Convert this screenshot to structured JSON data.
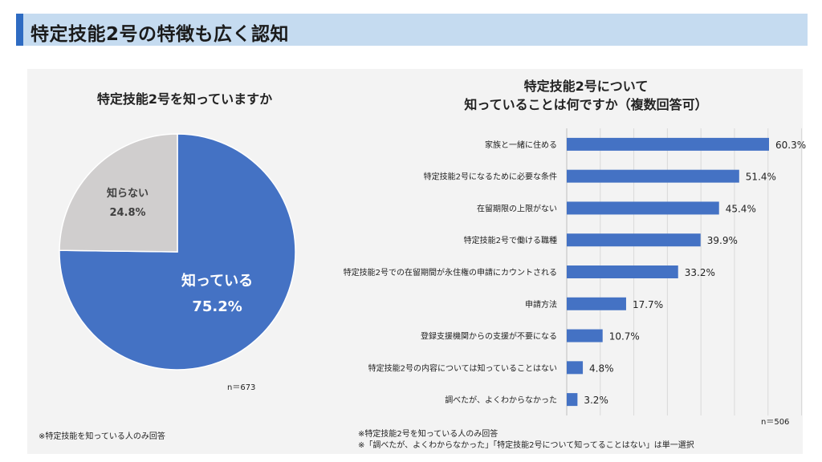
{
  "header": {
    "title": "特定技能2号の特徴も広く認知"
  },
  "pie_chart": {
    "title": "特定技能2号を知っていますか",
    "n_label": "n＝673",
    "note": "※特定技能を知っている人のみ回答"
  },
  "bar_chart": {
    "title_line1": "特定技能2号について",
    "title_line2": "知っていることは何ですか（複数回答可）",
    "n_label": "n＝506",
    "note_line1": "※特定技能2号を知っている人のみ回答",
    "note_line2": "※「調べたが、よくわからなかった」「特定技能2号について知ってることはない」は単一選択"
  },
  "colors": {
    "primary": "#4472c4",
    "secondary": "#d0cece",
    "title_band": "#c5dbf0",
    "accent": "#2e6bc2"
  },
  "chart_data": [
    {
      "type": "pie",
      "title": "特定技能2号を知っていますか",
      "slices": [
        {
          "label": "知っている",
          "value": 75.2,
          "value_label": "75.2%",
          "color": "#4472c4"
        },
        {
          "label": "知らない",
          "value": 24.8,
          "value_label": "24.8%",
          "color": "#d0cece"
        }
      ]
    },
    {
      "type": "bar",
      "orientation": "horizontal",
      "title": "特定技能2号について知っていることは何ですか（複数回答可）",
      "categories": [
        "家族と一緒に住める",
        "特定技能2号になるために必要な条件",
        "在留期限の上限がない",
        "特定技能2号で働ける職種",
        "特定技能2号での在留期間が永住権の申請にカウントされる",
        "申請方法",
        "登録支援機関からの支援が不要になる",
        "特定技能2号の内容については知っていることはない",
        "調べたが、よくわからなかった"
      ],
      "values": [
        60.3,
        51.4,
        45.4,
        39.9,
        33.2,
        17.7,
        10.7,
        4.8,
        3.2
      ],
      "value_labels": [
        "60.3%",
        "51.4%",
        "45.4%",
        "39.9%",
        "33.2%",
        "17.7%",
        "10.7%",
        "4.8%",
        "3.2%"
      ],
      "xlim": [
        0,
        70
      ],
      "grid": true,
      "color": "#4472c4"
    }
  ]
}
